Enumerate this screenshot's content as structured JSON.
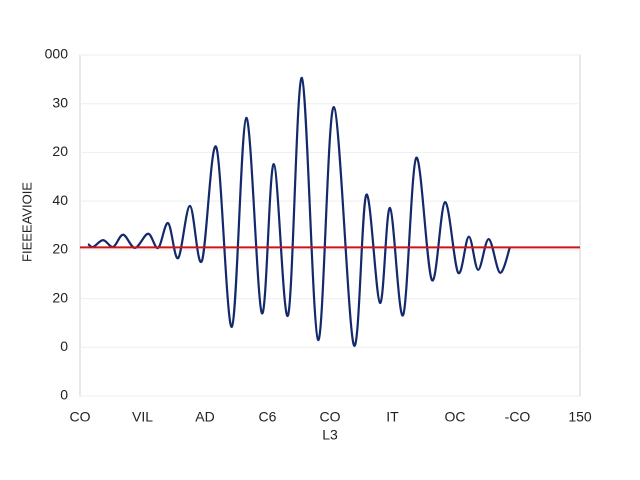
{
  "chart_data": {
    "type": "line",
    "x_label": "L3",
    "y_label": "FIEEEAVIOIE",
    "xlim": [
      0,
      8
    ],
    "xticks": [
      {
        "value": 0,
        "label": "CO"
      },
      {
        "value": 1,
        "label": "VIL"
      },
      {
        "value": 2,
        "label": "AD"
      },
      {
        "value": 3,
        "label": "C6"
      },
      {
        "value": 4,
        "label": "CO"
      },
      {
        "value": 5,
        "label": "IT"
      },
      {
        "value": 6,
        "label": "OC"
      },
      {
        "value": 7,
        "label": "-CO"
      },
      {
        "value": 8,
        "label": "150"
      }
    ],
    "ylim": [
      0,
      7
    ],
    "yticks": [
      {
        "value": 0,
        "label": "0"
      },
      {
        "value": 1,
        "label": "0"
      },
      {
        "value": 2,
        "label": "20"
      },
      {
        "value": 3,
        "label": "20"
      },
      {
        "value": 4,
        "label": "40"
      },
      {
        "value": 5,
        "label": "20"
      },
      {
        "value": 6,
        "label": "30"
      },
      {
        "value": 7,
        "label": "000"
      }
    ],
    "grid": true,
    "reference_line": {
      "value": 3.05,
      "color": "#c8161d"
    },
    "series": [
      {
        "color": "#13296b",
        "x": [
          0.13,
          0.21,
          0.37,
          0.53,
          0.69,
          0.88,
          1.09,
          1.25,
          1.41,
          1.57,
          1.76,
          1.95,
          2.18,
          2.43,
          2.66,
          2.91,
          3.1,
          3.33,
          3.55,
          3.81,
          4.06,
          4.38,
          4.58,
          4.8,
          4.96,
          5.17,
          5.38,
          5.63,
          5.84,
          6.05,
          6.22,
          6.37,
          6.54,
          6.72,
          6.88
        ],
        "values": [
          3.12,
          3.06,
          3.2,
          3.06,
          3.31,
          3.04,
          3.33,
          3.04,
          3.55,
          2.83,
          3.9,
          2.77,
          5.11,
          1.42,
          5.71,
          1.7,
          4.76,
          1.66,
          6.53,
          1.15,
          5.93,
          1.05,
          4.13,
          1.91,
          3.86,
          1.66,
          4.89,
          2.38,
          3.98,
          2.53,
          3.27,
          2.59,
          3.22,
          2.53,
          3.06
        ]
      }
    ]
  }
}
